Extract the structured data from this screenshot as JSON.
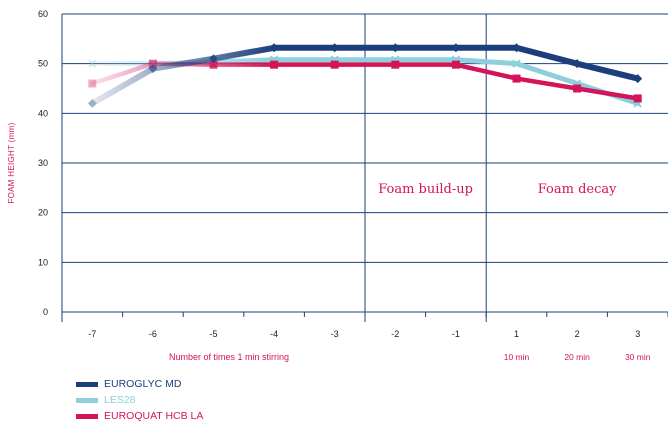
{
  "chart_data": {
    "type": "line",
    "ylabel": "FOAM HEIGHT (mm)",
    "xlabel": "Number of times 1 min stirring",
    "ylim": [
      0,
      60
    ],
    "yticks": [
      0,
      10,
      20,
      30,
      40,
      50,
      60
    ],
    "categories": [
      "-7",
      "-6",
      "-5",
      "-4",
      "-3",
      "-2",
      "-1",
      "1",
      "2",
      "3"
    ],
    "time_labels": [
      {
        "category": "1",
        "label": "10 min"
      },
      {
        "category": "2",
        "label": "20 min"
      },
      {
        "category": "3",
        "label": "30 min"
      }
    ],
    "regions": [
      {
        "label": "Foam build-up"
      },
      {
        "label": "Foam decay"
      }
    ],
    "grid": true,
    "legend_position": "bottom-left",
    "series": [
      {
        "name": "EUROGLYC MD",
        "color": "#1c3f7c",
        "marker": "diamond",
        "values": [
          42,
          49,
          51,
          53.2,
          53.2,
          53.2,
          53.2,
          53.2,
          50,
          47
        ]
      },
      {
        "name": "LES28",
        "color": "#8dd0dc",
        "marker": "x",
        "values": [
          50,
          50,
          50.3,
          50.8,
          50.8,
          50.8,
          50.8,
          50,
          46,
          42
        ]
      },
      {
        "name": "EUROQUAT HCB LA",
        "color": "#d4145a",
        "marker": "square",
        "values": [
          46,
          50,
          49.8,
          49.8,
          49.8,
          49.8,
          49.8,
          47,
          45,
          43
        ]
      }
    ]
  }
}
